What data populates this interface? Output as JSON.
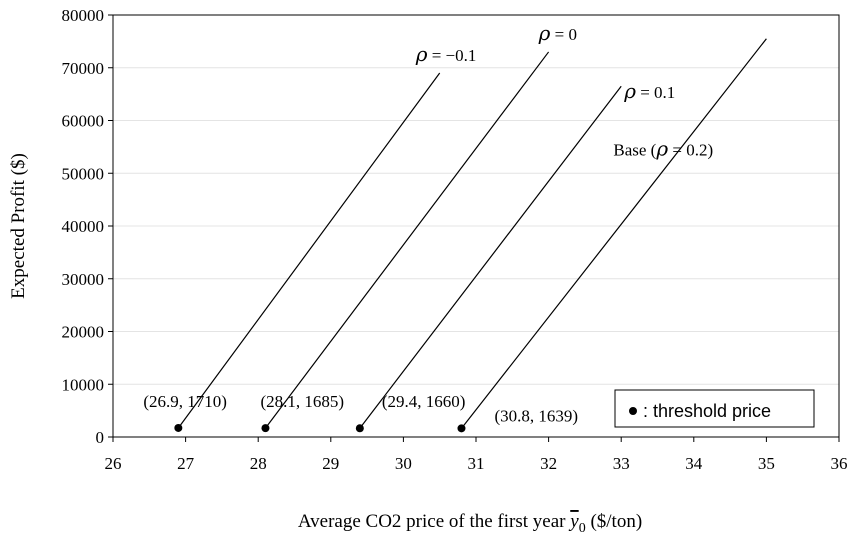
{
  "chart_data": {
    "type": "line",
    "title": "",
    "xlabel_prefix": "Average CO2 price of the first year ",
    "xlabel_symbol": "y",
    "xlabel_subscript": "0",
    "xlabel_suffix": " ($/ton)",
    "ylabel": "Expected Profit ($)",
    "xlim": [
      26,
      36
    ],
    "ylim": [
      0,
      80000
    ],
    "xticks": [
      "26",
      "27",
      "28",
      "29",
      "30",
      "31",
      "32",
      "33",
      "34",
      "35",
      "36"
    ],
    "yticks": [
      "0",
      "10000",
      "20000",
      "30000",
      "40000",
      "50000",
      "60000",
      "70000",
      "80000"
    ],
    "grid": "horizontal",
    "series": [
      {
        "name": "ρ = −0.1",
        "label_prefix": "",
        "rho_value": " = −0.1",
        "label_suffix": "",
        "x": [
          26.9,
          30.5
        ],
        "y": [
          1710,
          69000
        ]
      },
      {
        "name": "ρ = 0",
        "label_prefix": "",
        "rho_value": " = 0",
        "label_suffix": "",
        "x": [
          28.1,
          32.0
        ],
        "y": [
          1685,
          73000
        ]
      },
      {
        "name": "ρ = 0.1",
        "label_prefix": "",
        "rho_value": " = 0.1",
        "label_suffix": "",
        "x": [
          29.4,
          33.0
        ],
        "y": [
          1660,
          66500
        ]
      },
      {
        "name": "Base (ρ = 0.2)",
        "label_prefix": "Base  (",
        "rho_value": " = 0.2",
        "label_suffix": ")",
        "x": [
          30.8,
          35.0
        ],
        "y": [
          1639,
          75500
        ]
      }
    ],
    "threshold_points": [
      {
        "x": 26.9,
        "y": 1710,
        "label": "(26.9, 1710)"
      },
      {
        "x": 28.1,
        "y": 1685,
        "label": "(28.1, 1685)"
      },
      {
        "x": 29.4,
        "y": 1660,
        "label": "(29.4, 1660)"
      },
      {
        "x": 30.8,
        "y": 1639,
        "label": "(30.8, 1639)"
      }
    ],
    "rho_symbol": "ρ",
    "legend": {
      "position": "bottom-right",
      "text": ": threshold price"
    }
  }
}
